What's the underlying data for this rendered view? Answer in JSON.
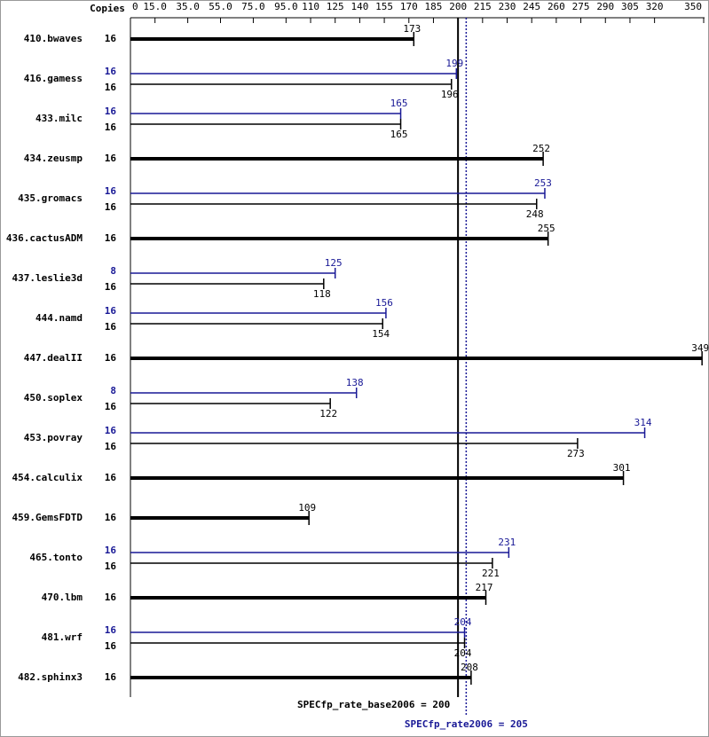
{
  "chart_data": {
    "type": "bar",
    "copies_label": "Copies",
    "categories": [
      "410.bwaves",
      "416.gamess",
      "433.milc",
      "434.zeusmp",
      "435.gromacs",
      "436.cactusADM",
      "437.leslie3d",
      "444.namd",
      "447.dealII",
      "450.soplex",
      "453.povray",
      "454.calculix",
      "459.GemsFDTD",
      "465.tonto",
      "470.lbm",
      "481.wrf",
      "482.sphinx3"
    ],
    "series": [
      {
        "name": "base",
        "color": "#000000",
        "copies": [
          16,
          16,
          16,
          16,
          16,
          16,
          16,
          16,
          16,
          16,
          16,
          16,
          16,
          16,
          16,
          16,
          16
        ],
        "values": [
          173,
          196,
          165,
          252,
          248,
          255,
          118,
          154,
          349,
          122,
          273,
          301,
          109,
          221,
          217,
          204,
          208
        ]
      },
      {
        "name": "peak",
        "color": "#191996",
        "copies": [
          null,
          16,
          16,
          null,
          16,
          null,
          8,
          16,
          null,
          8,
          16,
          null,
          null,
          16,
          null,
          16,
          null
        ],
        "values": [
          null,
          199,
          165,
          null,
          253,
          null,
          125,
          156,
          null,
          138,
          314,
          null,
          null,
          231,
          null,
          204,
          null
        ]
      }
    ],
    "xlim": [
      0,
      350
    ],
    "xticks": [
      0,
      {
        "value": 15,
        "label": "15.0"
      },
      {
        "value": 35,
        "label": "35.0"
      },
      {
        "value": 55,
        "label": "55.0"
      },
      {
        "value": 75,
        "label": "75.0"
      },
      {
        "value": 95,
        "label": "95.0"
      },
      110,
      125,
      140,
      155,
      170,
      185,
      200,
      215,
      230,
      245,
      260,
      275,
      290,
      305,
      320,
      350
    ],
    "reference_lines": [
      {
        "value": 200,
        "label": "SPECfp_rate_base2006 = 200",
        "color": "#000000",
        "style": "solid"
      },
      {
        "value": 205,
        "label": "SPECfp_rate2006 = 205",
        "color": "#191996",
        "style": "dotted"
      }
    ]
  }
}
